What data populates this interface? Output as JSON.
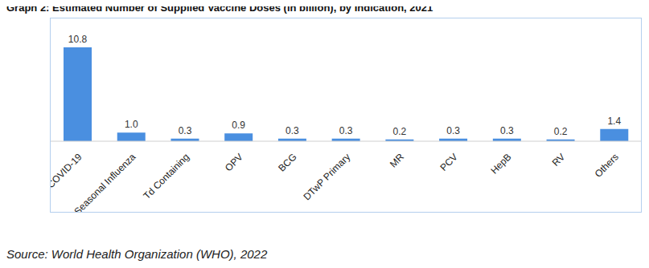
{
  "chart_data": {
    "type": "bar",
    "title": "Graph 2: Estimated Number of Supplied Vaccine Doses (in billion), by Indication, 2021",
    "source": "Source: World Health Organization (WHO), 2022",
    "categories": [
      "COVID-19",
      "Seasonal Influenza",
      "Td Containing",
      "OPV",
      "BCG",
      "DTwP Primary",
      "MR",
      "PCV",
      "HepB",
      "RV",
      "Others"
    ],
    "values": [
      10.8,
      1.0,
      0.3,
      0.9,
      0.3,
      0.3,
      0.2,
      0.3,
      0.3,
      0.2,
      1.4
    ],
    "value_labels": [
      "10.8",
      "1.0",
      "0.3",
      "0.9",
      "0.3",
      "0.3",
      "0.2",
      "0.3",
      "0.3",
      "0.2",
      "1.4"
    ],
    "color": "#4a8fe0",
    "data_labels": true,
    "tick_labels": "x",
    "grid": false
  }
}
